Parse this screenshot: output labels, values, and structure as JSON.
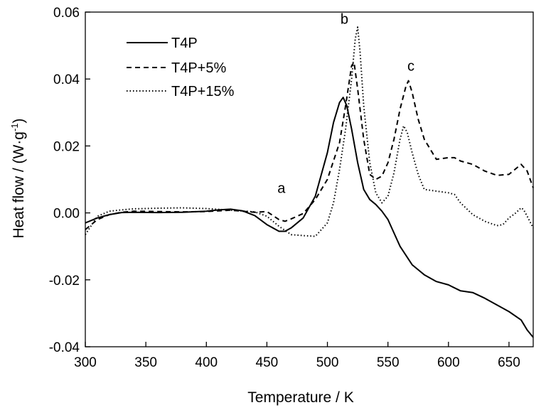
{
  "chart_data": {
    "type": "line",
    "title": "",
    "xlabel": "Temperature / K",
    "ylabel_main": "Heat flow / (W·g",
    "ylabel_sup": "-1",
    "ylabel_close": ")",
    "xlim": [
      300,
      670
    ],
    "ylim": [
      -0.04,
      0.06
    ],
    "x_ticks": [
      300,
      350,
      400,
      450,
      500,
      550,
      600,
      650
    ],
    "x_tick_labels": [
      "300",
      "350",
      "400",
      "450",
      "500",
      "550",
      "600",
      "650"
    ],
    "y_ticks": [
      -0.04,
      -0.02,
      0.0,
      0.02,
      0.04,
      0.06
    ],
    "y_tick_labels": [
      "-0.04",
      "-0.02",
      "0.00",
      "0.02",
      "0.04",
      "0.06"
    ],
    "grid": false,
    "legend_position": "top-left",
    "series": [
      {
        "name": "T4P",
        "dash": "solid",
        "points": [
          [
            300,
            -0.003
          ],
          [
            310,
            -0.0015
          ],
          [
            320,
            -0.0005
          ],
          [
            330,
            0.0001
          ],
          [
            340,
            0.0002
          ],
          [
            360,
            0.0001
          ],
          [
            380,
            0.0002
          ],
          [
            400,
            0.0005
          ],
          [
            410,
            0.0009
          ],
          [
            420,
            0.0011
          ],
          [
            430,
            0.0006
          ],
          [
            440,
            -0.0008
          ],
          [
            450,
            -0.0035
          ],
          [
            460,
            -0.0055
          ],
          [
            465,
            -0.0055
          ],
          [
            470,
            -0.0045
          ],
          [
            480,
            -0.0015
          ],
          [
            490,
            0.005
          ],
          [
            500,
            0.018
          ],
          [
            505,
            0.027
          ],
          [
            510,
            0.033
          ],
          [
            513,
            0.0345
          ],
          [
            516,
            0.032
          ],
          [
            520,
            0.025
          ],
          [
            525,
            0.015
          ],
          [
            530,
            0.007
          ],
          [
            535,
            0.004
          ],
          [
            540,
            0.0025
          ],
          [
            545,
            0.0005
          ],
          [
            550,
            -0.002
          ],
          [
            555,
            -0.006
          ],
          [
            560,
            -0.01
          ],
          [
            570,
            -0.0155
          ],
          [
            580,
            -0.0185
          ],
          [
            590,
            -0.0205
          ],
          [
            600,
            -0.0215
          ],
          [
            610,
            -0.0233
          ],
          [
            620,
            -0.0238
          ],
          [
            630,
            -0.0255
          ],
          [
            640,
            -0.0275
          ],
          [
            650,
            -0.0295
          ],
          [
            660,
            -0.032
          ],
          [
            665,
            -0.035
          ],
          [
            670,
            -0.0372
          ]
        ]
      },
      {
        "name": "T4P+5%",
        "dash": "dashed",
        "points": [
          [
            300,
            -0.005
          ],
          [
            310,
            -0.002
          ],
          [
            320,
            -0.0005
          ],
          [
            330,
            0.0002
          ],
          [
            340,
            0.0005
          ],
          [
            360,
            0.0004
          ],
          [
            380,
            0.0003
          ],
          [
            400,
            0.0004
          ],
          [
            420,
            0.0008
          ],
          [
            440,
            0.0002
          ],
          [
            445,
            0.0003
          ],
          [
            450,
            0.0004
          ],
          [
            455,
            -0.0008
          ],
          [
            460,
            -0.002
          ],
          [
            465,
            -0.0025
          ],
          [
            470,
            -0.0018
          ],
          [
            480,
            -0.0002
          ],
          [
            490,
            0.004
          ],
          [
            500,
            0.01
          ],
          [
            510,
            0.021
          ],
          [
            515,
            0.032
          ],
          [
            520,
            0.044
          ],
          [
            522,
            0.045
          ],
          [
            525,
            0.037
          ],
          [
            530,
            0.022
          ],
          [
            535,
            0.0115
          ],
          [
            540,
            0.01
          ],
          [
            545,
            0.011
          ],
          [
            550,
            0.015
          ],
          [
            555,
            0.022
          ],
          [
            560,
            0.031
          ],
          [
            565,
            0.038
          ],
          [
            567,
            0.0395
          ],
          [
            570,
            0.036
          ],
          [
            575,
            0.028
          ],
          [
            580,
            0.022
          ],
          [
            585,
            0.019
          ],
          [
            590,
            0.016
          ],
          [
            600,
            0.0165
          ],
          [
            605,
            0.0165
          ],
          [
            610,
            0.0155
          ],
          [
            620,
            0.0145
          ],
          [
            630,
            0.0125
          ],
          [
            640,
            0.0112
          ],
          [
            650,
            0.0115
          ],
          [
            660,
            0.0145
          ],
          [
            665,
            0.0125
          ],
          [
            670,
            0.0075
          ]
        ]
      },
      {
        "name": "T4P+15%",
        "dash": "dotted",
        "points": [
          [
            300,
            -0.0065
          ],
          [
            310,
            -0.001
          ],
          [
            320,
            0.0005
          ],
          [
            330,
            0.0009
          ],
          [
            340,
            0.0012
          ],
          [
            360,
            0.0014
          ],
          [
            380,
            0.0015
          ],
          [
            400,
            0.0013
          ],
          [
            420,
            0.0008
          ],
          [
            440,
            0.0003
          ],
          [
            450,
            -0.001
          ],
          [
            460,
            -0.004
          ],
          [
            470,
            -0.0065
          ],
          [
            480,
            -0.0068
          ],
          [
            490,
            -0.007
          ],
          [
            500,
            -0.003
          ],
          [
            505,
            0.003
          ],
          [
            510,
            0.013
          ],
          [
            515,
            0.025
          ],
          [
            520,
            0.04
          ],
          [
            523,
            0.052
          ],
          [
            525,
            0.0555
          ],
          [
            527,
            0.048
          ],
          [
            530,
            0.032
          ],
          [
            535,
            0.015
          ],
          [
            540,
            0.006
          ],
          [
            545,
            0.003
          ],
          [
            550,
            0.005
          ],
          [
            555,
            0.012
          ],
          [
            560,
            0.022
          ],
          [
            563,
            0.026
          ],
          [
            566,
            0.024
          ],
          [
            570,
            0.018
          ],
          [
            575,
            0.0115
          ],
          [
            580,
            0.007
          ],
          [
            590,
            0.0065
          ],
          [
            600,
            0.006
          ],
          [
            605,
            0.0055
          ],
          [
            610,
            0.003
          ],
          [
            620,
            -0.0005
          ],
          [
            630,
            -0.0025
          ],
          [
            640,
            -0.0038
          ],
          [
            645,
            -0.0035
          ],
          [
            650,
            -0.0015
          ],
          [
            655,
            -0.0002
          ],
          [
            660,
            0.0015
          ],
          [
            662,
            0.001
          ],
          [
            665,
            -0.001
          ],
          [
            670,
            -0.0045
          ]
        ]
      }
    ],
    "annotations": [
      {
        "text": "a",
        "x": 462,
        "y": 0.006
      },
      {
        "text": "b",
        "x": 514,
        "y": 0.0565
      },
      {
        "text": "c",
        "x": 569,
        "y": 0.0425
      }
    ]
  }
}
